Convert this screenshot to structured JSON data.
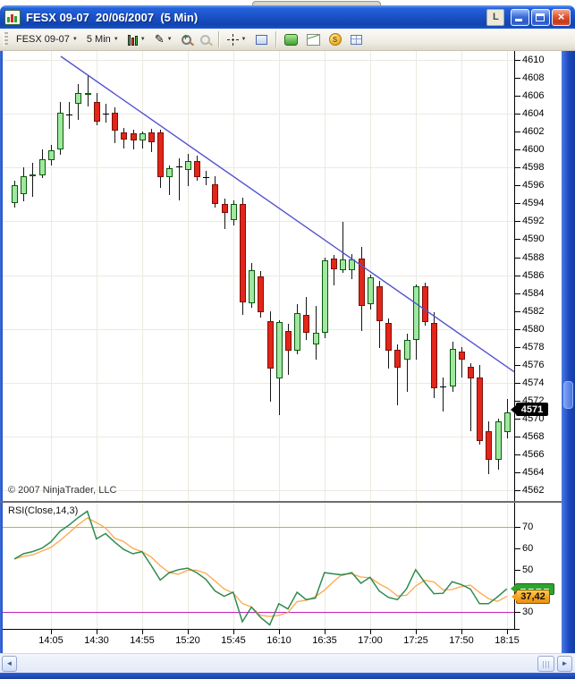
{
  "window": {
    "title": "FESX 09-07  20/06/2007  (5 Min)",
    "buttons": {
      "link": "L"
    },
    "close_glyph": "×"
  },
  "icons": {
    "caret": "▼",
    "pencil": "✎",
    "coin_letter": "S",
    "scroll_left": "◄",
    "scroll_right": "►"
  },
  "toolbar": {
    "instrument": "FESX 09-07",
    "interval": "5 Min",
    "buttons": [
      "instrument-selector",
      "interval-selector",
      "chart-style",
      "drawing-tools",
      "zoom-in",
      "zoom-out",
      "crosshair",
      "data-box",
      "chart-trader",
      "indicators",
      "strategies",
      "properties"
    ]
  },
  "chart_data": {
    "type": "candlestick",
    "title": "FESX 09-07 5 Min",
    "price_axis": {
      "max": 4610,
      "min": 4562,
      "step": 2,
      "labels": [
        4610,
        4608,
        4606,
        4604,
        4602,
        4600,
        4598,
        4596,
        4594,
        4592,
        4590,
        4588,
        4586,
        4584,
        4582,
        4580,
        4578,
        4576,
        4574,
        4572,
        4570,
        4568,
        4566,
        4564,
        4562
      ]
    },
    "gridline_prices": [
      4610,
      4604,
      4598,
      4592,
      4586,
      4580,
      4574,
      4568,
      4562
    ],
    "time_labels": [
      {
        "label": "14:05",
        "candle": 5
      },
      {
        "label": "14:30",
        "candle": 10
      },
      {
        "label": "14:55",
        "candle": 15
      },
      {
        "label": "15:20",
        "candle": 20
      },
      {
        "label": "15:45",
        "candle": 25
      },
      {
        "label": "16:10",
        "candle": 30
      },
      {
        "label": "16:35",
        "candle": 35
      },
      {
        "label": "17:00",
        "candle": 40
      },
      {
        "label": "17:25",
        "candle": 45
      },
      {
        "label": "17:50",
        "candle": 50
      },
      {
        "label": "18:15",
        "candle": 55
      }
    ],
    "columns": [
      "time",
      "open",
      "high",
      "low",
      "close"
    ],
    "candles": [
      [
        "13:45",
        4594.0,
        4596.5,
        4593.5,
        4596.0
      ],
      [
        "13:50",
        4595.0,
        4598.0,
        4594.2,
        4597.0
      ],
      [
        "13:55",
        4597.0,
        4598.5,
        4594.7,
        4597.2
      ],
      [
        "14:00",
        4597.1,
        4600.0,
        4596.8,
        4598.9
      ],
      [
        "14:05",
        4598.8,
        4600.5,
        4598.2,
        4599.9
      ],
      [
        "14:10",
        4600.0,
        4605.3,
        4599.4,
        4604.1
      ],
      [
        "14:15",
        4603.9,
        4605.3,
        4602.3,
        4603.8
      ],
      [
        "14:20",
        4605.1,
        4607.3,
        4603.3,
        4606.3
      ],
      [
        "14:25",
        4606.1,
        4608.3,
        4604.8,
        4606.3
      ],
      [
        "14:30",
        4605.3,
        4606.3,
        4602.7,
        4603.1
      ],
      [
        "14:35",
        4604.0,
        4605.1,
        4603.0,
        4604.0
      ],
      [
        "14:40",
        4604.1,
        4604.7,
        4600.7,
        4602.1
      ],
      [
        "14:45",
        4601.9,
        4602.4,
        4600.1,
        4601.1
      ],
      [
        "14:50",
        4601.8,
        4602.2,
        4600.0,
        4601.0
      ],
      [
        "14:55",
        4601.0,
        4602.0,
        4600.1,
        4601.8
      ],
      [
        "15:00",
        4601.9,
        4602.3,
        4599.7,
        4600.8
      ],
      [
        "15:05",
        4601.9,
        4602.2,
        4595.7,
        4596.9
      ],
      [
        "15:10",
        4596.9,
        4598.2,
        4594.9,
        4597.9
      ],
      [
        "15:15",
        4598.0,
        4599.0,
        4594.3,
        4598.1
      ],
      [
        "15:20",
        4597.7,
        4599.5,
        4595.9,
        4598.7
      ],
      [
        "15:25",
        4598.7,
        4599.3,
        4596.5,
        4596.9
      ],
      [
        "15:30",
        4596.9,
        4597.6,
        4596.0,
        4596.8
      ],
      [
        "15:35",
        4596.1,
        4597.0,
        4593.5,
        4593.9
      ],
      [
        "15:40",
        4593.9,
        4594.5,
        4591.1,
        4592.9
      ],
      [
        "15:45",
        4592.1,
        4594.3,
        4591.5,
        4593.9
      ],
      [
        "15:50",
        4593.9,
        4594.6,
        4581.6,
        4582.9
      ],
      [
        "15:55",
        4582.9,
        4587.4,
        4582.4,
        4586.6
      ],
      [
        "16:00",
        4585.9,
        4586.5,
        4581.3,
        4581.9
      ],
      [
        "16:05",
        4580.9,
        4582.0,
        4571.9,
        4575.6
      ],
      [
        "16:10",
        4574.5,
        4581.0,
        4570.4,
        4580.8
      ],
      [
        "16:15",
        4579.8,
        4580.6,
        4574.9,
        4577.6
      ],
      [
        "16:20",
        4577.6,
        4582.8,
        4577.2,
        4581.8
      ],
      [
        "16:25",
        4581.6,
        4583.6,
        4578.8,
        4579.6
      ],
      [
        "16:30",
        4578.3,
        4582.6,
        4576.6,
        4579.6
      ],
      [
        "16:35",
        4579.6,
        4588.0,
        4579.0,
        4587.7
      ],
      [
        "16:40",
        4587.9,
        4588.3,
        4584.9,
        4586.7
      ],
      [
        "16:45",
        4586.6,
        4591.9,
        4586.2,
        4587.8
      ],
      [
        "16:50",
        4586.6,
        4588.4,
        4585.6,
        4587.8
      ],
      [
        "16:55",
        4587.9,
        4589.1,
        4579.8,
        4582.6
      ],
      [
        "17:00",
        4582.8,
        4586.1,
        4582.2,
        4585.8
      ],
      [
        "17:05",
        4584.8,
        4585.4,
        4577.9,
        4580.9
      ],
      [
        "17:10",
        4580.7,
        4581.2,
        4575.6,
        4577.6
      ],
      [
        "17:15",
        4577.7,
        4578.3,
        4571.5,
        4575.7
      ],
      [
        "17:20",
        4576.6,
        4579.5,
        4573.0,
        4578.8
      ],
      [
        "17:25",
        4578.8,
        4585.0,
        4576.6,
        4584.8
      ],
      [
        "17:30",
        4584.8,
        4585.2,
        4580.4,
        4580.8
      ],
      [
        "17:35",
        4580.7,
        4581.9,
        4572.3,
        4573.4
      ],
      [
        "17:40",
        4573.5,
        4574.6,
        4570.8,
        4573.6
      ],
      [
        "17:45",
        4573.6,
        4578.6,
        4573.0,
        4577.8
      ],
      [
        "17:50",
        4577.5,
        4578.0,
        4574.6,
        4576.6
      ],
      [
        "17:55",
        4575.8,
        4576.2,
        4568.6,
        4574.5
      ],
      [
        "18:00",
        4574.6,
        4576.0,
        4567.1,
        4567.5
      ],
      [
        "18:05",
        4568.6,
        4569.7,
        4563.8,
        4565.4
      ],
      [
        "18:10",
        4565.4,
        4570.0,
        4564.3,
        4569.7
      ],
      [
        "18:15",
        4568.5,
        4572.2,
        4567.8,
        4570.7
      ]
    ],
    "trendline": {
      "from_candle": 6.1,
      "from_price": 4610.4,
      "to_candle": 55.8,
      "to_price": 4575.2
    },
    "price_marker": {
      "label": "4571",
      "price": 4571
    },
    "copyright": "© 2007 NinjaTrader, LLC",
    "rsi": {
      "label": "RSI(Close,14,3)",
      "overbought": 70,
      "oversold": 30,
      "axis_labels": [
        70,
        60,
        50,
        40,
        30
      ],
      "avg_period": 3,
      "values": [
        55,
        57.5,
        58.5,
        60,
        63,
        68,
        71,
        74.5,
        77.5,
        64.5,
        67,
        63,
        59.5,
        57.5,
        58.5,
        52,
        45.1,
        48.6,
        50,
        50.7,
        48.6,
        45.5,
        40,
        37.5,
        39.4,
        25.5,
        32.4,
        27.5,
        24,
        34,
        31.5,
        39.4,
        35.9,
        36.6,
        48.6,
        48,
        47.5,
        48.6,
        43.6,
        46.4,
        40,
        37,
        35.9,
        41,
        50,
        44,
        38.7,
        38.9,
        44.3,
        43,
        40.9,
        34,
        34,
        37.3,
        41
      ],
      "marker": {
        "label": "37,42",
        "value": 37.42,
        "line_value": 41
      }
    },
    "colors": {
      "up": "#a0e8a0",
      "down": "#e22619",
      "wick": "#151515",
      "grid": "#ece9e0",
      "trend": "#5454d0",
      "rsi_line": "#2f8b50",
      "rsi_avg": "#ffa748",
      "overbought_line": "#b6bc1e",
      "oversold_line": "#c021c0",
      "price_tag_bg": "#000000",
      "rsi_tag_green": "#2fa32f",
      "rsi_tag_orange": "#f5a01e"
    }
  }
}
